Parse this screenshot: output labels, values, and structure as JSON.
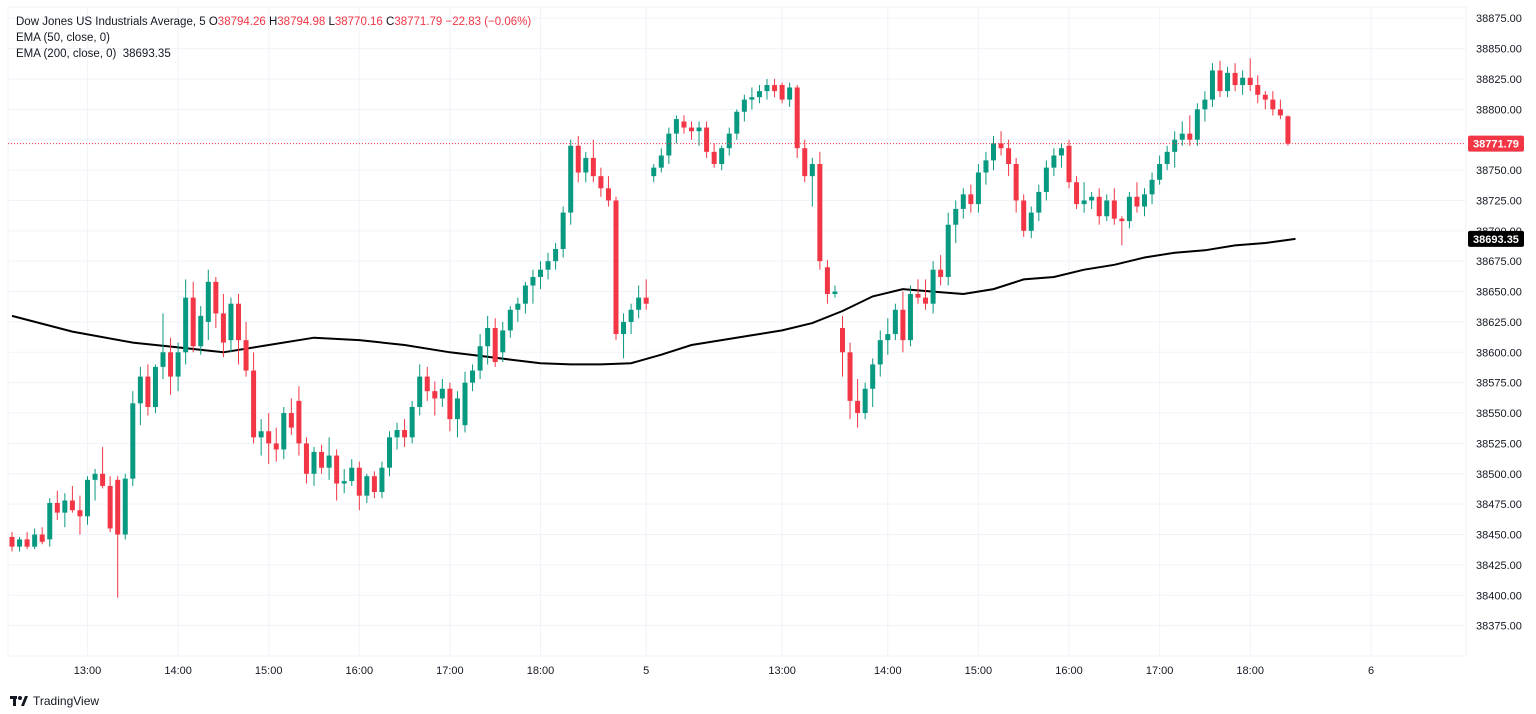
{
  "legend": {
    "symbol": "Dow Jones US Industrials Average, 5",
    "open_label": "O",
    "open": "38794.26",
    "high_label": "H",
    "high": "38794.98",
    "low_label": "L",
    "low": "38770.16",
    "close_label": "C",
    "close": "38771.79",
    "change": "−22.83 (−0.06%)",
    "ema50": "EMA (50, close, 0)",
    "ema200": "EMA (200, close, 0)",
    "ema200_value": "38693.35"
  },
  "footer": {
    "brand": "TradingView"
  },
  "colors": {
    "up": "#089981",
    "down": "#f23645",
    "ema200": "#000000",
    "grid": "#f0f3fa",
    "price_label_bg": "#f23645",
    "ema_label_bg": "#000000"
  },
  "chart_data": {
    "type": "candlestick",
    "title": "Dow Jones US Industrials Average, 5",
    "ylim": [
      38350,
      38890
    ],
    "y_ticks": [
      38375,
      38400,
      38425,
      38450,
      38475,
      38500,
      38525,
      38550,
      38575,
      38600,
      38625,
      38650,
      38675,
      38700,
      38725,
      38750,
      38775,
      38800,
      38825,
      38850,
      38875
    ],
    "x_ticks": [
      "13:00",
      "14:00",
      "15:00",
      "16:00",
      "17:00",
      "18:00",
      "5",
      "13:00",
      "14:00",
      "15:00",
      "16:00",
      "17:00",
      "18:00",
      "6"
    ],
    "x_tick_index": [
      10,
      22,
      34,
      46,
      58,
      70,
      84,
      102,
      116,
      128,
      140,
      152,
      164,
      180
    ],
    "last_price": 38771.79,
    "last_price_label": "38771.79",
    "ema200_label": "38693.35",
    "candles": [
      [
        38448,
        38452,
        38436,
        38440
      ],
      [
        38440,
        38448,
        38436,
        38446
      ],
      [
        38446,
        38452,
        38438,
        38440
      ],
      [
        38440,
        38455,
        38438,
        38450
      ],
      [
        38450,
        38456,
        38442,
        38444
      ],
      [
        38446,
        38480,
        38440,
        38476
      ],
      [
        38476,
        38486,
        38462,
        38468
      ],
      [
        38468,
        38484,
        38456,
        38478
      ],
      [
        38478,
        38490,
        38468,
        38470
      ],
      [
        38470,
        38482,
        38450,
        38465
      ],
      [
        38465,
        38498,
        38458,
        38495
      ],
      [
        38495,
        38504,
        38478,
        38500
      ],
      [
        38500,
        38522,
        38488,
        38490
      ],
      [
        38490,
        38498,
        38452,
        38455
      ],
      [
        38495,
        38498,
        38398,
        38450
      ],
      [
        38450,
        38500,
        38446,
        38496
      ],
      [
        38496,
        38568,
        38490,
        38558
      ],
      [
        38558,
        38588,
        38540,
        38580
      ],
      [
        38580,
        38590,
        38548,
        38555
      ],
      [
        38555,
        38590,
        38550,
        38588
      ],
      [
        38588,
        38632,
        38578,
        38600
      ],
      [
        38600,
        38612,
        38565,
        38580
      ],
      [
        38580,
        38608,
        38568,
        38600
      ],
      [
        38600,
        38660,
        38590,
        38645
      ],
      [
        38645,
        38658,
        38600,
        38605
      ],
      [
        38605,
        38638,
        38598,
        38630
      ],
      [
        38625,
        38668,
        38610,
        38658
      ],
      [
        38658,
        38662,
        38620,
        38632
      ],
      [
        38632,
        38648,
        38596,
        38608
      ],
      [
        38610,
        38645,
        38600,
        38640
      ],
      [
        38640,
        38648,
        38590,
        38610
      ],
      [
        38610,
        38625,
        38580,
        38585
      ],
      [
        38585,
        38600,
        38525,
        38530
      ],
      [
        38530,
        38545,
        38515,
        38535
      ],
      [
        38535,
        38550,
        38508,
        38525
      ],
      [
        38525,
        38538,
        38510,
        38520
      ],
      [
        38520,
        38555,
        38512,
        38550
      ],
      [
        38550,
        38562,
        38532,
        38538
      ],
      [
        38560,
        38572,
        38515,
        38525
      ],
      [
        38525,
        38530,
        38492,
        38500
      ],
      [
        38500,
        38522,
        38490,
        38518
      ],
      [
        38518,
        38524,
        38500,
        38505
      ],
      [
        38505,
        38530,
        38495,
        38515
      ],
      [
        38515,
        38520,
        38478,
        38492
      ],
      [
        38492,
        38504,
        38484,
        38494
      ],
      [
        38494,
        38512,
        38490,
        38505
      ],
      [
        38505,
        38510,
        38470,
        38482
      ],
      [
        38482,
        38500,
        38476,
        38498
      ],
      [
        38498,
        38502,
        38480,
        38485
      ],
      [
        38485,
        38510,
        38480,
        38505
      ],
      [
        38505,
        38535,
        38498,
        38530
      ],
      [
        38530,
        38542,
        38520,
        38536
      ],
      [
        38536,
        38545,
        38522,
        38530
      ],
      [
        38530,
        38560,
        38525,
        38555
      ],
      [
        38555,
        38590,
        38548,
        38580
      ],
      [
        38580,
        38588,
        38560,
        38568
      ],
      [
        38568,
        38576,
        38548,
        38562
      ],
      [
        38562,
        38578,
        38555,
        38570
      ],
      [
        38570,
        38575,
        38535,
        38545
      ],
      [
        38545,
        38568,
        38530,
        38562
      ],
      [
        38540,
        38584,
        38534,
        38575
      ],
      [
        38575,
        38590,
        38568,
        38585
      ],
      [
        38585,
        38615,
        38578,
        38605
      ],
      [
        38605,
        38630,
        38590,
        38620
      ],
      [
        38620,
        38628,
        38588,
        38592
      ],
      [
        38600,
        38625,
        38592,
        38618
      ],
      [
        38618,
        38638,
        38612,
        38635
      ],
      [
        38635,
        38645,
        38625,
        38640
      ],
      [
        38640,
        38658,
        38632,
        38655
      ],
      [
        38655,
        38668,
        38640,
        38662
      ],
      [
        38662,
        38675,
        38652,
        38668
      ],
      [
        38668,
        38682,
        38660,
        38675
      ],
      [
        38675,
        38690,
        38668,
        38685
      ],
      [
        38685,
        38720,
        38678,
        38715
      ],
      [
        38715,
        38775,
        38705,
        38770
      ],
      [
        38770,
        38778,
        38740,
        38748
      ],
      [
        38748,
        38765,
        38740,
        38760
      ],
      [
        38760,
        38775,
        38740,
        38745
      ],
      [
        38745,
        38752,
        38728,
        38735
      ],
      [
        38735,
        38745,
        38720,
        38725
      ],
      [
        38725,
        38728,
        38610,
        38615
      ],
      [
        38615,
        38632,
        38595,
        38625
      ],
      [
        38625,
        38640,
        38615,
        38635
      ],
      [
        38635,
        38655,
        38628,
        38645
      ],
      [
        38645,
        38660,
        38635,
        38640
      ],
      [
        38745,
        38755,
        38740,
        38752
      ],
      [
        38752,
        38768,
        38748,
        38762
      ],
      [
        38762,
        38785,
        38755,
        38780
      ],
      [
        38780,
        38795,
        38772,
        38792
      ],
      [
        38790,
        38795,
        38780,
        38785
      ],
      [
        38785,
        38790,
        38775,
        38782
      ],
      [
        38782,
        38790,
        38770,
        38785
      ],
      [
        38785,
        38790,
        38760,
        38765
      ],
      [
        38765,
        38772,
        38752,
        38755
      ],
      [
        38755,
        38770,
        38750,
        38768
      ],
      [
        38768,
        38785,
        38762,
        38780
      ],
      [
        38780,
        38800,
        38775,
        38798
      ],
      [
        38798,
        38812,
        38790,
        38808
      ],
      [
        38808,
        38818,
        38800,
        38810
      ],
      [
        38810,
        38820,
        38805,
        38815
      ],
      [
        38815,
        38825,
        38808,
        38820
      ],
      [
        38820,
        38825,
        38810,
        38815
      ],
      [
        38820,
        38822,
        38805,
        38808
      ],
      [
        38808,
        38822,
        38802,
        38818
      ],
      [
        38818,
        38820,
        38760,
        38768
      ],
      [
        38768,
        38775,
        38740,
        38745
      ],
      [
        38745,
        38760,
        38720,
        38755
      ],
      [
        38755,
        38765,
        38668,
        38675
      ],
      [
        38670,
        38676,
        38640,
        38648
      ],
      [
        38648,
        38655,
        38645,
        38650
      ],
      [
        38620,
        38630,
        38580,
        38600
      ],
      [
        38600,
        38608,
        38545,
        38560
      ],
      [
        38560,
        38578,
        38538,
        38550
      ],
      [
        38550,
        38575,
        38545,
        38570
      ],
      [
        38570,
        38595,
        38555,
        38590
      ],
      [
        38590,
        38618,
        38580,
        38610
      ],
      [
        38610,
        38628,
        38598,
        38615
      ],
      [
        38615,
        38640,
        38610,
        38635
      ],
      [
        38635,
        38650,
        38600,
        38610
      ],
      [
        38610,
        38655,
        38605,
        38648
      ],
      [
        38648,
        38660,
        38640,
        38645
      ],
      [
        38645,
        38660,
        38635,
        38640
      ],
      [
        38640,
        38675,
        38632,
        38668
      ],
      [
        38668,
        38680,
        38655,
        38662
      ],
      [
        38662,
        38715,
        38655,
        38705
      ],
      [
        38705,
        38725,
        38690,
        38718
      ],
      [
        38718,
        38735,
        38710,
        38730
      ],
      [
        38730,
        38738,
        38715,
        38722
      ],
      [
        38722,
        38755,
        38715,
        38748
      ],
      [
        38748,
        38765,
        38738,
        38758
      ],
      [
        38758,
        38778,
        38750,
        38772
      ],
      [
        38772,
        38782,
        38762,
        38768
      ],
      [
        38768,
        38775,
        38745,
        38755
      ],
      [
        38755,
        38760,
        38715,
        38725
      ],
      [
        38725,
        38730,
        38695,
        38700
      ],
      [
        38700,
        38720,
        38694,
        38715
      ],
      [
        38715,
        38738,
        38708,
        38732
      ],
      [
        38732,
        38758,
        38725,
        38752
      ],
      [
        38752,
        38768,
        38745,
        38762
      ],
      [
        38762,
        38772,
        38752,
        38768
      ],
      [
        38770,
        38775,
        38735,
        38740
      ],
      [
        38740,
        38745,
        38718,
        38722
      ],
      [
        38722,
        38740,
        38715,
        38725
      ],
      [
        38725,
        38732,
        38718,
        38728
      ],
      [
        38728,
        38735,
        38705,
        38712
      ],
      [
        38712,
        38730,
        38708,
        38725
      ],
      [
        38725,
        38735,
        38705,
        38710
      ],
      [
        38710,
        38712,
        38688,
        38708
      ],
      [
        38708,
        38732,
        38702,
        38728
      ],
      [
        38728,
        38740,
        38715,
        38720
      ],
      [
        38720,
        38735,
        38712,
        38730
      ],
      [
        38730,
        38748,
        38722,
        38742
      ],
      [
        38742,
        38762,
        38738,
        38755
      ],
      [
        38755,
        38770,
        38750,
        38765
      ],
      [
        38765,
        38782,
        38752,
        38775
      ],
      [
        38775,
        38790,
        38770,
        38780
      ],
      [
        38780,
        38795,
        38770,
        38775
      ],
      [
        38775,
        38805,
        38770,
        38800
      ],
      [
        38800,
        38815,
        38790,
        38808
      ],
      [
        38808,
        38838,
        38802,
        38832
      ],
      [
        38832,
        38840,
        38810,
        38815
      ],
      [
        38815,
        38835,
        38810,
        38830
      ],
      [
        38830,
        38838,
        38815,
        38820
      ],
      [
        38820,
        38832,
        38812,
        38826
      ],
      [
        38826,
        38842,
        38815,
        38820
      ],
      [
        38820,
        38828,
        38805,
        38812
      ],
      [
        38812,
        38815,
        38800,
        38808
      ],
      [
        38808,
        38815,
        38795,
        38800
      ],
      [
        38800,
        38808,
        38792,
        38795
      ],
      [
        38794.26,
        38794.98,
        38770.16,
        38771.79
      ]
    ],
    "ema200": [
      38630,
      38617,
      38608,
      38604,
      38600,
      38606,
      38612,
      38610,
      38606,
      38600,
      38597,
      38594,
      38591,
      38590,
      38590,
      38591,
      38598,
      38606,
      38610,
      38614,
      38618,
      38624,
      38634,
      38646,
      38652,
      38650,
      38648,
      38652,
      38660,
      38662,
      38668,
      38672,
      38678,
      38682,
      38684,
      38688,
      38690,
      38693.35
    ],
    "ema200_index": [
      0,
      8,
      16,
      22,
      28,
      34,
      40,
      46,
      52,
      58,
      62,
      66,
      70,
      74,
      78,
      82,
      86,
      90,
      94,
      98,
      102,
      106,
      110,
      114,
      118,
      122,
      126,
      130,
      134,
      138,
      142,
      146,
      150,
      154,
      158,
      162,
      166,
      170
    ]
  }
}
